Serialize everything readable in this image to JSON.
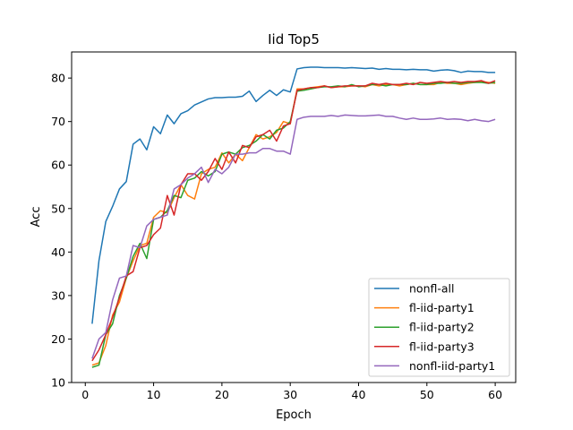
{
  "chart_data": {
    "type": "line",
    "title": "Iid Top5",
    "xlabel": "Epoch",
    "ylabel": "Acc",
    "xlim": [
      -2,
      63
    ],
    "ylim": [
      10,
      86
    ],
    "xticks": [
      0,
      10,
      20,
      30,
      40,
      50,
      60
    ],
    "yticks": [
      10,
      20,
      30,
      40,
      50,
      60,
      70,
      80
    ],
    "grid": false,
    "legend_position": "lower-right",
    "x": [
      1,
      2,
      3,
      4,
      5,
      6,
      7,
      8,
      9,
      10,
      11,
      12,
      13,
      14,
      15,
      16,
      17,
      18,
      19,
      20,
      21,
      22,
      23,
      24,
      25,
      26,
      27,
      28,
      29,
      30,
      31,
      32,
      33,
      34,
      35,
      36,
      37,
      38,
      39,
      40,
      41,
      42,
      43,
      44,
      45,
      46,
      47,
      48,
      49,
      50,
      51,
      52,
      53,
      54,
      55,
      56,
      57,
      58,
      59,
      60
    ],
    "series": [
      {
        "name": "nonfl-all",
        "color": "#1f77b4",
        "values": [
          23.5,
          38.0,
          47.0,
          50.5,
          54.5,
          56.2,
          64.8,
          66.0,
          63.5,
          68.8,
          67.2,
          71.5,
          69.5,
          71.8,
          72.5,
          73.8,
          74.5,
          75.2,
          75.5,
          75.5,
          75.6,
          75.6,
          75.8,
          77.0,
          74.6,
          76.0,
          77.2,
          76.0,
          77.3,
          76.8,
          82.1,
          82.4,
          82.5,
          82.5,
          82.4,
          82.4,
          82.4,
          82.3,
          82.4,
          82.3,
          82.2,
          82.3,
          82.0,
          82.2,
          82.0,
          82.0,
          81.9,
          82.0,
          81.9,
          81.9,
          81.6,
          81.8,
          81.9,
          81.7,
          81.3,
          81.6,
          81.5,
          81.5,
          81.3,
          81.3
        ]
      },
      {
        "name": "fl-iid-party1",
        "color": "#ff7f0e",
        "values": [
          14.0,
          14.5,
          18.5,
          25.5,
          28.5,
          34.0,
          38.0,
          41.5,
          42.0,
          48.0,
          49.5,
          49.0,
          52.5,
          55.5,
          53.0,
          52.2,
          58.0,
          59.0,
          59.5,
          62.8,
          60.5,
          62.5,
          61.0,
          64.0,
          67.0,
          66.0,
          66.5,
          67.5,
          70.0,
          69.5,
          77.5,
          77.5,
          77.8,
          78.0,
          78.2,
          77.8,
          78.0,
          78.0,
          78.2,
          78.2,
          78.0,
          78.5,
          78.2,
          78.5,
          78.5,
          78.2,
          78.5,
          78.8,
          78.5,
          78.5,
          78.5,
          79.0,
          78.8,
          78.8,
          78.5,
          78.8,
          79.0,
          79.2,
          79.0,
          78.8
        ]
      },
      {
        "name": "fl-iid-party2",
        "color": "#2ca02c",
        "values": [
          13.5,
          14.0,
          21.0,
          23.5,
          30.0,
          34.0,
          39.0,
          42.0,
          38.5,
          47.5,
          48.0,
          49.5,
          53.0,
          52.5,
          56.5,
          57.0,
          58.5,
          57.5,
          58.5,
          62.5,
          63.0,
          62.5,
          64.0,
          64.5,
          65.5,
          67.0,
          66.0,
          68.0,
          68.5,
          70.0,
          77.0,
          77.2,
          77.5,
          77.8,
          78.0,
          78.0,
          78.2,
          78.0,
          78.5,
          78.0,
          78.2,
          78.5,
          78.5,
          78.2,
          78.5,
          78.5,
          78.5,
          78.8,
          78.5,
          78.5,
          78.8,
          78.8,
          79.0,
          78.8,
          78.8,
          79.0,
          79.0,
          79.0,
          78.8,
          79.0
        ]
      },
      {
        "name": "fl-iid-party3",
        "color": "#d62728",
        "values": [
          15.0,
          17.5,
          21.0,
          25.0,
          29.5,
          34.5,
          35.5,
          41.0,
          41.5,
          44.0,
          45.5,
          53.0,
          48.5,
          55.5,
          58.0,
          58.0,
          56.5,
          58.5,
          61.5,
          59.0,
          63.0,
          60.5,
          64.5,
          64.0,
          66.5,
          67.0,
          68.0,
          65.5,
          69.0,
          69.5,
          77.2,
          77.5,
          77.8,
          77.8,
          78.2,
          77.8,
          78.0,
          78.2,
          78.2,
          78.2,
          78.2,
          78.8,
          78.5,
          78.8,
          78.5,
          78.5,
          78.8,
          78.5,
          79.0,
          78.8,
          79.0,
          79.2,
          79.0,
          79.2,
          79.0,
          79.2,
          79.2,
          79.4,
          78.8,
          79.4
        ]
      },
      {
        "name": "nonfl-iid-party1",
        "color": "#9467bd",
        "values": [
          15.5,
          20.0,
          21.5,
          29.0,
          34.0,
          34.5,
          41.5,
          41.0,
          46.0,
          47.5,
          48.0,
          48.5,
          54.5,
          55.5,
          57.0,
          58.0,
          59.5,
          56.0,
          59.0,
          58.0,
          59.5,
          62.5,
          62.5,
          62.8,
          62.8,
          63.8,
          63.8,
          63.2,
          63.2,
          62.5,
          70.5,
          71.0,
          71.2,
          71.2,
          71.2,
          71.4,
          71.2,
          71.5,
          71.4,
          71.3,
          71.3,
          71.4,
          71.5,
          71.2,
          71.2,
          70.8,
          70.5,
          70.8,
          70.5,
          70.5,
          70.6,
          70.8,
          70.5,
          70.6,
          70.5,
          70.2,
          70.5,
          70.2,
          70.0,
          70.5
        ]
      }
    ]
  }
}
